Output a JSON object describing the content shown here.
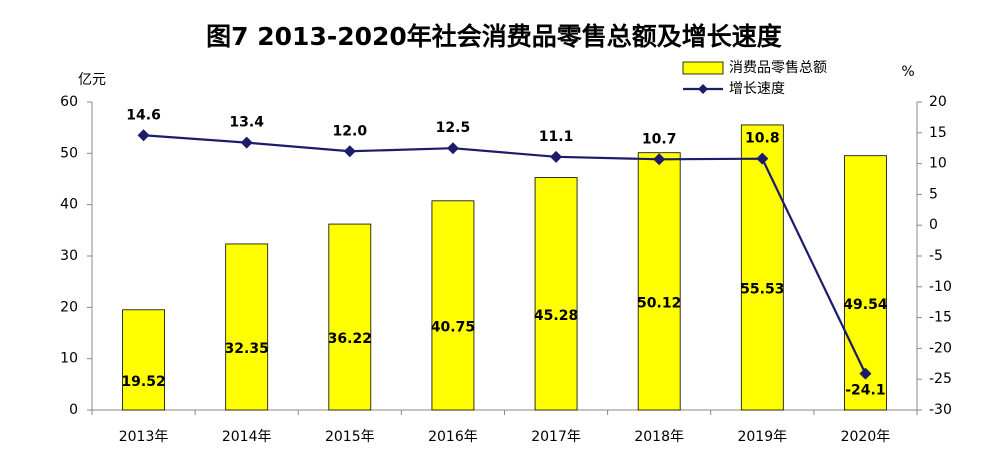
{
  "chart_data": {
    "type": "bar_line",
    "title": "图7 2013-2020年社会消费品零售总额及增长速度",
    "y_label": "亿元",
    "y2_label": "%",
    "categories": [
      "2013年",
      "2014年",
      "2015年",
      "2016年",
      "2017年",
      "2018年",
      "2019年",
      "2020年"
    ],
    "series": [
      {
        "name": "消费品零售总额",
        "type": "bar",
        "color": "#ffff00",
        "values": [
          19.52,
          32.35,
          36.22,
          40.75,
          45.28,
          50.12,
          55.53,
          49.54
        ]
      },
      {
        "name": "增长速度",
        "type": "line",
        "color": "#1c1c6b",
        "axis": "y2",
        "values": [
          14.6,
          13.4,
          12.0,
          12.5,
          11.1,
          10.7,
          10.8,
          -24.1
        ],
        "value_labels": [
          "14.6",
          "13.4",
          "12.0",
          "12.5",
          "11.1",
          "10.7",
          "10.8",
          "-24.1"
        ]
      }
    ],
    "ylim": [
      0,
      60
    ],
    "yticks": [
      0,
      10,
      20,
      30,
      40,
      50,
      60
    ],
    "y2lim": [
      -30,
      20
    ],
    "y2ticks": [
      -30,
      -25,
      -20,
      -15,
      -10,
      -5,
      0,
      5,
      10,
      15,
      20
    ],
    "legend": "top-right"
  }
}
